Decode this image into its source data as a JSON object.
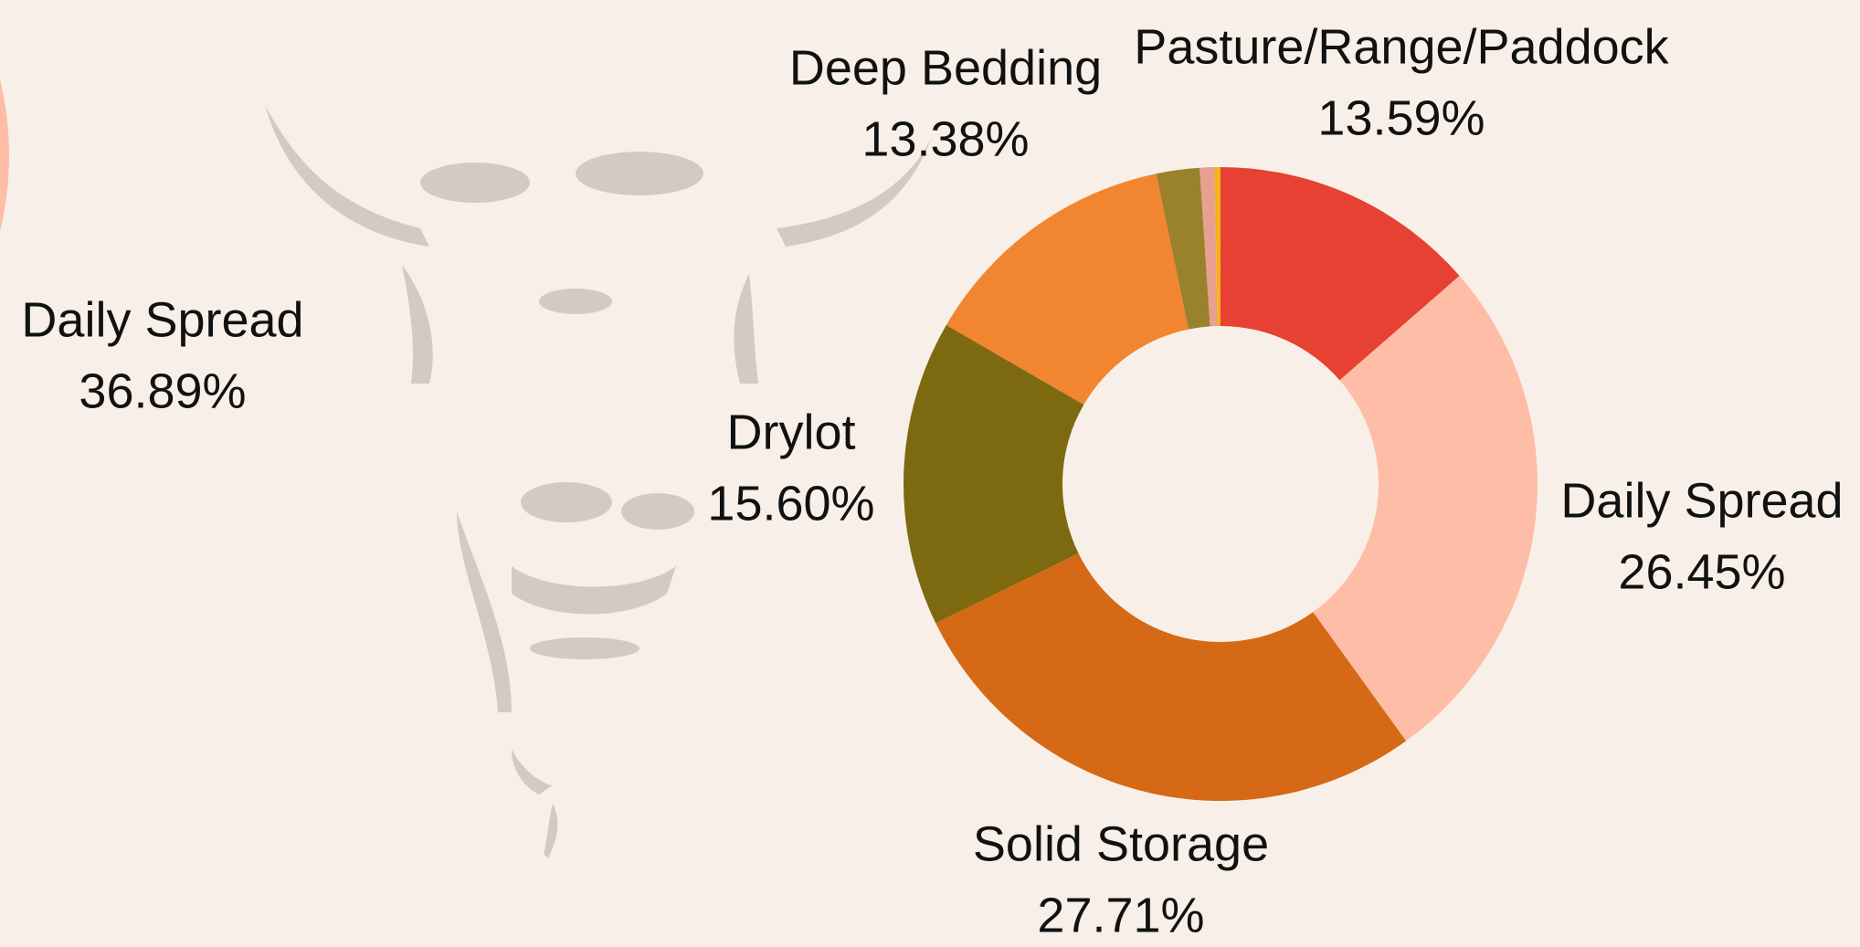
{
  "chart_data": [
    {
      "type": "donut",
      "categories": [
        "Pasture/Range/Paddock",
        "Daily Spread",
        "Solid Storage",
        "Drylot",
        "Deep Bedding",
        null,
        null,
        null
      ],
      "values": [
        13.59,
        26.45,
        27.71,
        15.6,
        13.38,
        2.2,
        0.75,
        0.3
      ],
      "value_labels": [
        "13.59%",
        "26.45%",
        "27.71%",
        "15.60%",
        "13.38%",
        null,
        null,
        null
      ],
      "colors": [
        "#e64132",
        "#fdbda6",
        "#d66915",
        "#7d6a10",
        "#f28530",
        "#9a812c",
        "#e8a090",
        "#f5b21a"
      ]
    },
    {
      "type": "pie",
      "categories": [
        "Daily Spread"
      ],
      "values": [
        36.89
      ],
      "value_labels": [
        "36.89%"
      ],
      "colors": [
        "#fdbda6"
      ]
    }
  ]
}
